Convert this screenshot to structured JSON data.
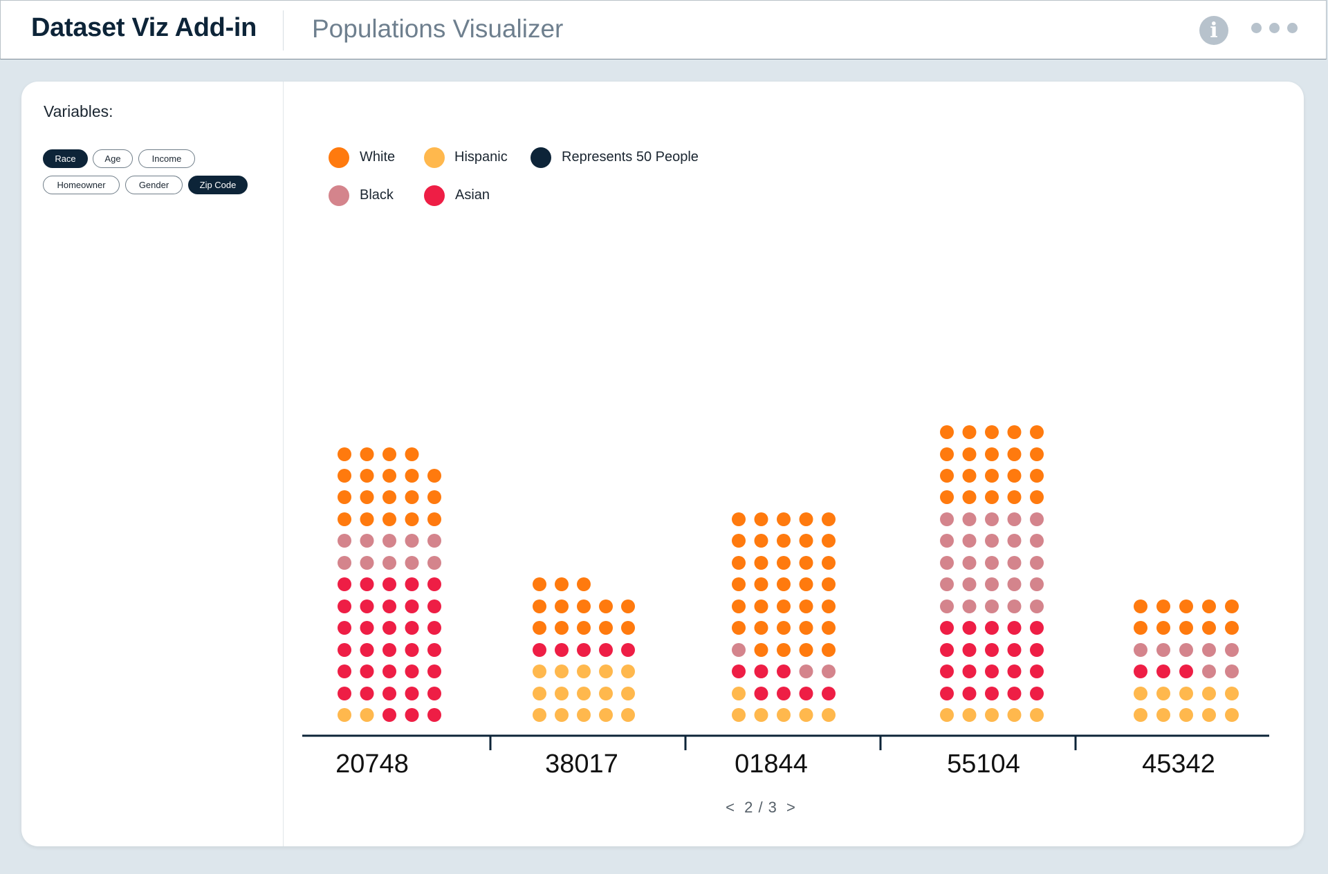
{
  "header": {
    "app_title": "Dataset Viz Add-in",
    "page_title": "Populations Visualizer",
    "info_icon": "info-icon",
    "more_icon": "more-icon",
    "info_glyph": "i"
  },
  "sidebar": {
    "label": "Variables:",
    "pills": [
      {
        "label": "Race",
        "active": true
      },
      {
        "label": "Age",
        "active": false
      },
      {
        "label": "Income",
        "active": false
      },
      {
        "label": "Homeowner",
        "active": false
      },
      {
        "label": "Gender",
        "active": false
      },
      {
        "label": "Zip Code",
        "active": true
      }
    ]
  },
  "legend": {
    "white": "White",
    "hispanic": "Hispanic",
    "represents": "Represents 50 People",
    "black": "Black",
    "asian": "Asian"
  },
  "colors": {
    "White": "#ff7a0e",
    "Hispanic": "#ffb84d",
    "Black": "#d4848c",
    "Asian": "#ee1e45",
    "unit": "#0d2438",
    "axis": "#0d2438"
  },
  "pager": {
    "prev": "<",
    "text": "2 / 3",
    "next": ">"
  },
  "chart_data": {
    "type": "dot-matrix",
    "unit": 50,
    "unit_label": "Represents 50 People",
    "categories": [
      "20748",
      "38017",
      "01844",
      "55104",
      "45342"
    ],
    "series": [
      {
        "name": "White",
        "values": [
          19,
          13,
          34,
          20,
          10
        ]
      },
      {
        "name": "Black",
        "values": [
          10,
          0,
          3,
          25,
          7
        ]
      },
      {
        "name": "Asian",
        "values": [
          33,
          5,
          7,
          20,
          3
        ]
      },
      {
        "name": "Hispanic",
        "values": [
          2,
          15,
          6,
          5,
          10
        ]
      }
    ]
  }
}
